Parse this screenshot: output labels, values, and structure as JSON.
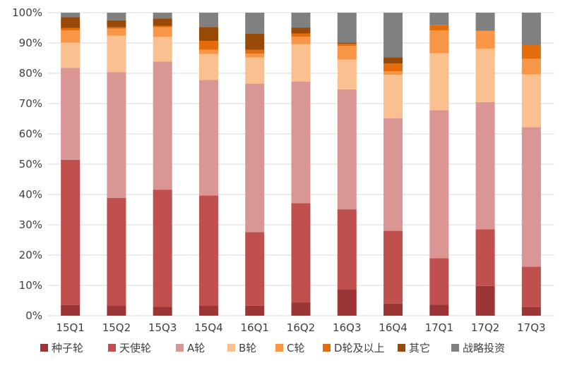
{
  "chart_data": {
    "type": "bar",
    "stacked": true,
    "percent": true,
    "title": "",
    "xlabel": "",
    "ylabel": "",
    "ylim": [
      0,
      100
    ],
    "y_ticks": [
      "0%",
      "10%",
      "20%",
      "30%",
      "40%",
      "50%",
      "60%",
      "70%",
      "80%",
      "90%",
      "100%"
    ],
    "grid": true,
    "legend_position": "bottom",
    "categories": [
      "15Q1",
      "15Q2",
      "15Q3",
      "15Q4",
      "16Q1",
      "16Q2",
      "16Q3",
      "16Q4",
      "17Q1",
      "17Q2",
      "17Q3"
    ],
    "series": [
      {
        "name": "种子轮",
        "color": "#9b3536",
        "values": [
          3.5,
          3.4,
          2.9,
          3.4,
          3.3,
          4.4,
          8.6,
          4.0,
          3.6,
          9.8,
          2.8
        ]
      },
      {
        "name": "天使轮",
        "color": "#c0504d",
        "values": [
          47.9,
          35.5,
          38.7,
          36.3,
          24.3,
          32.7,
          26.5,
          24.0,
          15.4,
          18.7,
          13.4
        ]
      },
      {
        "name": "A轮",
        "color": "#d99694",
        "values": [
          30.4,
          41.5,
          42.3,
          38.1,
          49.0,
          40.2,
          39.6,
          37.2,
          48.8,
          42.0,
          46.0
        ]
      },
      {
        "name": "B轮",
        "color": "#fac08f",
        "values": [
          8.3,
          12.0,
          8.1,
          8.6,
          8.6,
          12.3,
          9.8,
          14.3,
          18.8,
          17.6,
          17.4
        ]
      },
      {
        "name": "C轮",
        "color": "#f79646",
        "values": [
          4.1,
          2.3,
          3.2,
          1.4,
          1.3,
          2.5,
          4.5,
          1.2,
          7.6,
          5.9,
          5.2
        ]
      },
      {
        "name": "D轮及以上",
        "color": "#e46c0a",
        "values": [
          0.8,
          0.5,
          0.5,
          2.9,
          1.3,
          1.0,
          0.7,
          2.5,
          1.8,
          0.0,
          4.5
        ]
      },
      {
        "name": "其它",
        "color": "#984807",
        "values": [
          3.5,
          2.3,
          2.4,
          4.6,
          5.3,
          2.0,
          0.4,
          2.1,
          0.0,
          0.0,
          0.0
        ]
      },
      {
        "name": "战略投资",
        "color": "#808080",
        "values": [
          1.5,
          2.5,
          1.9,
          4.7,
          6.9,
          4.9,
          9.9,
          14.7,
          4.0,
          6.0,
          10.7
        ]
      }
    ]
  }
}
